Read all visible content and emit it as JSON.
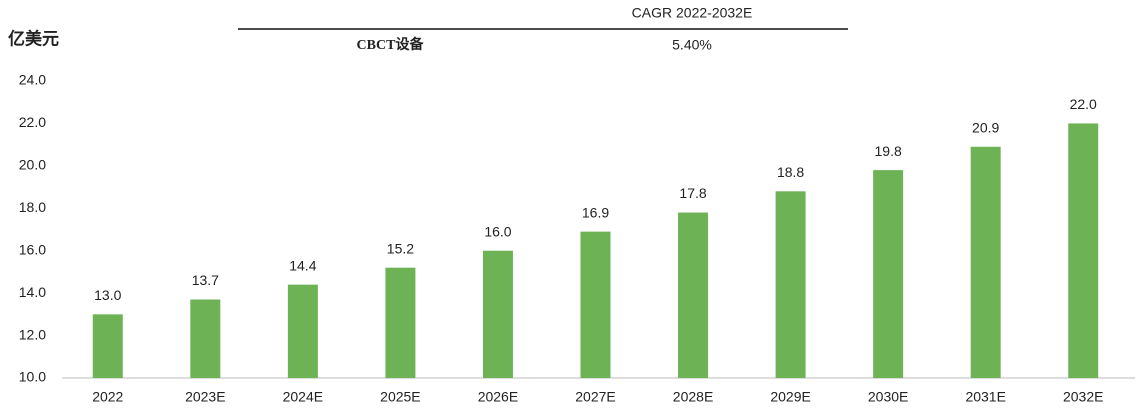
{
  "chart_data": {
    "type": "bar",
    "y_axis_label": "亿美元",
    "table": {
      "header": "CAGR 2022-2032E",
      "row_label": "CBCT设备",
      "row_value": "5.40%"
    },
    "categories": [
      "2022",
      "2023E",
      "2024E",
      "2025E",
      "2026E",
      "2027E",
      "2028E",
      "2029E",
      "2030E",
      "2031E",
      "2032E"
    ],
    "values": [
      13.0,
      13.7,
      14.4,
      15.2,
      16.0,
      16.9,
      17.8,
      18.8,
      19.8,
      20.9,
      22.0
    ],
    "value_labels": [
      "13.0",
      "13.7",
      "14.4",
      "15.2",
      "16.0",
      "16.9",
      "17.8",
      "18.8",
      "19.8",
      "20.9",
      "22.0"
    ],
    "color": "#6db356",
    "ylim": [
      10,
      24
    ],
    "yticks": [
      {
        "value": 10,
        "label": "10.0"
      },
      {
        "value": 12,
        "label": "12.0"
      },
      {
        "value": 14,
        "label": "14.0"
      },
      {
        "value": 16,
        "label": "16.0"
      },
      {
        "value": 18,
        "label": "18.0"
      },
      {
        "value": 20,
        "label": "20.0"
      },
      {
        "value": 22,
        "label": "22.0"
      },
      {
        "value": 24,
        "label": "24.0"
      }
    ],
    "grid": false
  }
}
